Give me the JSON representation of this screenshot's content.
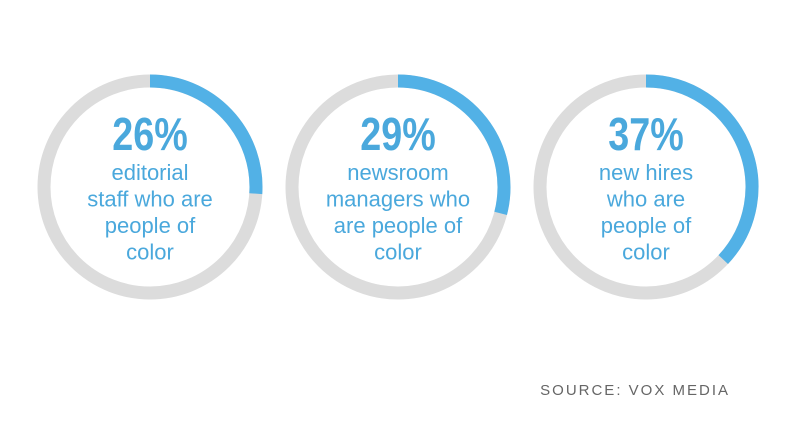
{
  "chart_data": {
    "type": "donut",
    "categories": [
      [
        "editorial",
        "staff who are",
        "people of",
        "color"
      ],
      [
        "newsroom",
        "managers who",
        "are people of",
        "color"
      ],
      [
        "new hires",
        "who are",
        "people of",
        "color"
      ]
    ],
    "values": [
      26,
      29,
      37
    ],
    "value_labels": [
      "26%",
      "29%",
      "37%"
    ],
    "ylim": [
      0,
      100
    ],
    "color": "#52b1e6",
    "track_color": "#dcdcdc",
    "source": "SOURCE: VOX MEDIA"
  }
}
